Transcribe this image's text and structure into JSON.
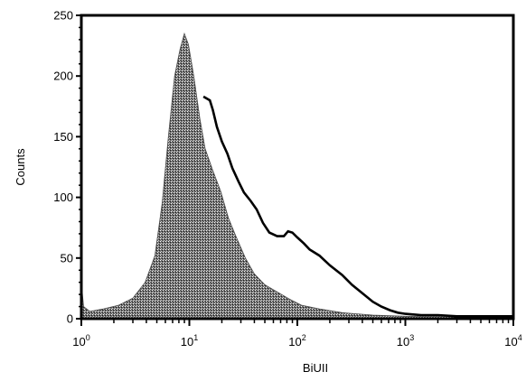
{
  "chart_data": {
    "type": "area",
    "title": "",
    "xlabel": "BiUII",
    "ylabel": "Counts",
    "x_scale": "log",
    "xlim": [
      1,
      10000
    ],
    "ylim": [
      0,
      250
    ],
    "grid": false,
    "legend": "none",
    "x_ticks": [
      {
        "base": "10",
        "exp": "0",
        "value": 1
      },
      {
        "base": "10",
        "exp": "1",
        "value": 10
      },
      {
        "base": "10",
        "exp": "2",
        "value": 100
      },
      {
        "base": "10",
        "exp": "3",
        "value": 1000
      },
      {
        "base": "10",
        "exp": "4",
        "value": 10000
      }
    ],
    "y_ticks": [
      "0",
      "50",
      "100",
      "150",
      "200",
      "250"
    ],
    "series": [
      {
        "style": "filled",
        "color": "#4a4a4a",
        "points": [
          [
            1.0,
            30
          ],
          [
            1.05,
            10
          ],
          [
            1.2,
            6
          ],
          [
            1.6,
            8
          ],
          [
            2.2,
            11
          ],
          [
            3.0,
            17
          ],
          [
            3.9,
            30
          ],
          [
            4.8,
            52
          ],
          [
            5.6,
            95
          ],
          [
            6.4,
            150
          ],
          [
            7.3,
            200
          ],
          [
            8.2,
            222
          ],
          [
            9.0,
            235
          ],
          [
            9.8,
            226
          ],
          [
            11.0,
            200
          ],
          [
            12.5,
            165
          ],
          [
            14.0,
            140
          ],
          [
            16.5,
            122
          ],
          [
            19.5,
            105
          ],
          [
            23.0,
            83
          ],
          [
            27.0,
            68
          ],
          [
            33.0,
            50
          ],
          [
            40.0,
            37
          ],
          [
            50.0,
            28
          ],
          [
            65.0,
            22
          ],
          [
            85.0,
            16
          ],
          [
            110.0,
            11
          ],
          [
            160.0,
            8
          ],
          [
            260.0,
            5
          ],
          [
            500.0,
            3
          ],
          [
            1000.0,
            2
          ],
          [
            3000.0,
            2
          ],
          [
            10000.0,
            2
          ]
        ]
      },
      {
        "style": "line",
        "color": "#000000",
        "points": [
          [
            13.5,
            183
          ],
          [
            15.5,
            180
          ],
          [
            16.5,
            172
          ],
          [
            18.0,
            158
          ],
          [
            20.0,
            146
          ],
          [
            22.5,
            136
          ],
          [
            25.0,
            124
          ],
          [
            28.5,
            113
          ],
          [
            32.0,
            104
          ],
          [
            37.0,
            97
          ],
          [
            42.0,
            90
          ],
          [
            48.0,
            79
          ],
          [
            55.0,
            71
          ],
          [
            65.0,
            68
          ],
          [
            75.0,
            68
          ],
          [
            82.0,
            72
          ],
          [
            90.0,
            71
          ],
          [
            100.0,
            67
          ],
          [
            115.0,
            62
          ],
          [
            130.0,
            57
          ],
          [
            160.0,
            52
          ],
          [
            200.0,
            44
          ],
          [
            260.0,
            36
          ],
          [
            320.0,
            28
          ],
          [
            400.0,
            21
          ],
          [
            500.0,
            14
          ],
          [
            600.0,
            10
          ],
          [
            720.0,
            7
          ],
          [
            850.0,
            5
          ],
          [
            1000.0,
            4
          ],
          [
            1400.0,
            3
          ],
          [
            2000.0,
            3
          ],
          [
            3000.0,
            2
          ],
          [
            10000.0,
            2
          ]
        ]
      }
    ]
  }
}
